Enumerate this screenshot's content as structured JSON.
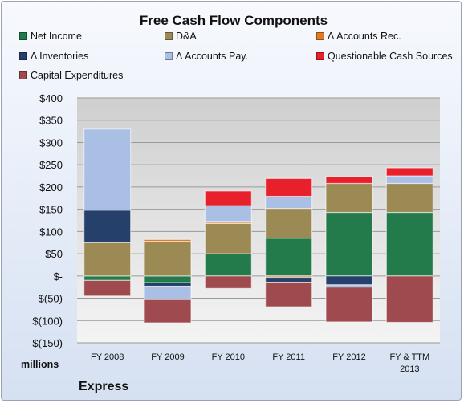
{
  "chart_data": {
    "type": "bar",
    "stacked": true,
    "title": "Free Cash Flow Components",
    "unit_label": "millions",
    "company": "Express",
    "categories": [
      "FY 2008",
      "FY 2009",
      "FY 2010",
      "FY 2011",
      "FY 2012",
      "FY & TTM 2013"
    ],
    "ylim": [
      -150,
      400
    ],
    "yticks": [
      {
        "value": 400,
        "label": "$400"
      },
      {
        "value": 350,
        "label": "$350"
      },
      {
        "value": 300,
        "label": "$300"
      },
      {
        "value": 250,
        "label": "$250"
      },
      {
        "value": 200,
        "label": "$200"
      },
      {
        "value": 150,
        "label": "$150"
      },
      {
        "value": 100,
        "label": "$100"
      },
      {
        "value": 50,
        "label": "$50"
      },
      {
        "value": 0,
        "label": "$-"
      },
      {
        "value": -50,
        "label": "$(50)"
      },
      {
        "value": -100,
        "label": "$(100)"
      },
      {
        "value": -150,
        "label": "$(150)"
      }
    ],
    "grid": true,
    "legend_position": "top",
    "series": [
      {
        "name": "Net Income",
        "color": "#237a4a",
        "values": [
          -10,
          -15,
          50,
          85,
          143,
          143
        ]
      },
      {
        "name": "D&A",
        "color": "#9c8a55",
        "values": [
          75,
          78,
          68,
          67,
          65,
          65
        ]
      },
      {
        "name": "Δ Accounts Rec.",
        "color": "#e07a26",
        "values": [
          0,
          4,
          3,
          -3,
          0,
          0
        ]
      },
      {
        "name": "Δ Inventories",
        "color": "#25406a",
        "values": [
          73,
          -8,
          2,
          -11,
          -20,
          0
        ]
      },
      {
        "name": "Δ Accounts Pay.",
        "color": "#a9c0e4",
        "values": [
          182,
          -30,
          35,
          27,
          -5,
          17
        ]
      },
      {
        "name": "Questionable Cash Sources",
        "color": "#e8202b",
        "values": [
          0,
          0,
          33,
          40,
          15,
          18
        ]
      },
      {
        "name": "Capital Expenditures",
        "color": "#9f4a4e",
        "values": [
          -35,
          -52,
          -28,
          -55,
          -78,
          -104
        ]
      }
    ]
  }
}
